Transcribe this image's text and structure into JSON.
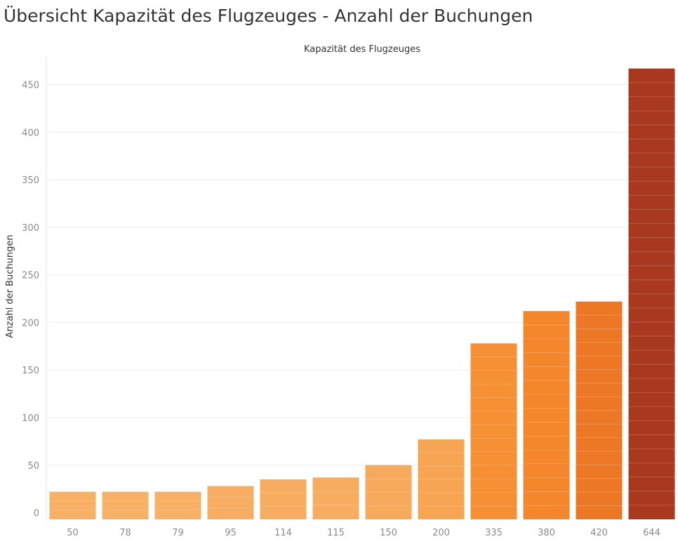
{
  "page": {
    "title": "Übersicht Kapazität des Flugzeuges - Anzahl der Buchungen"
  },
  "chart_data": {
    "type": "bar",
    "title": "Übersicht Kapazität des Flugzeuges - Anzahl der Buchungen",
    "xlabel": "Kapazität des Flugzeuges",
    "ylabel": "Anzahl der Buchungen",
    "x_axis_position": "top",
    "categories": [
      "50",
      "78",
      "79",
      "95",
      "114",
      "115",
      "150",
      "200",
      "335",
      "380",
      "420",
      "644"
    ],
    "values": [
      22,
      22,
      22,
      28,
      35,
      37,
      50,
      77,
      178,
      212,
      222,
      467
    ],
    "ylim": [
      -7,
      480
    ],
    "yticks": [
      0,
      50,
      100,
      150,
      200,
      250,
      300,
      350,
      400,
      450
    ],
    "grid": true,
    "legend": "none",
    "colors": {
      "low": "#f7b46a",
      "mid": "#f58a2c",
      "high": "#e4661f",
      "max": "#a8391e",
      "segment_line": "#ffffff"
    }
  }
}
